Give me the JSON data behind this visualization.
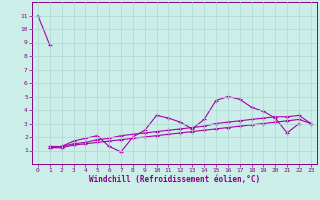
{
  "xlabel": "Windchill (Refroidissement éolien,°C)",
  "background_color": "#cceee8",
  "grid_color": "#b0d8d8",
  "line_color": "#aa00aa",
  "x": [
    0,
    1,
    2,
    3,
    4,
    5,
    6,
    7,
    8,
    9,
    10,
    11,
    12,
    13,
    14,
    15,
    16,
    17,
    18,
    19,
    20,
    21,
    22,
    23
  ],
  "series1": [
    11.0,
    8.8,
    null,
    null,
    null,
    null,
    null,
    null,
    null,
    null,
    null,
    null,
    null,
    null,
    null,
    null,
    null,
    null,
    null,
    null,
    null,
    null,
    null,
    null
  ],
  "series2": [
    null,
    1.3,
    1.3,
    1.7,
    1.9,
    2.1,
    1.3,
    0.9,
    2.0,
    2.5,
    3.6,
    3.4,
    3.1,
    2.6,
    3.3,
    4.7,
    5.0,
    4.8,
    4.2,
    3.9,
    3.4,
    2.3,
    3.0,
    null
  ],
  "series3": [
    null,
    1.2,
    1.3,
    1.5,
    1.6,
    1.8,
    1.9,
    2.1,
    2.2,
    2.3,
    2.4,
    2.5,
    2.6,
    2.7,
    2.8,
    3.0,
    3.1,
    3.2,
    3.3,
    3.4,
    3.5,
    3.5,
    3.6,
    3.0
  ],
  "series4": [
    null,
    1.2,
    1.2,
    1.4,
    1.5,
    1.6,
    1.7,
    1.8,
    1.9,
    2.0,
    2.1,
    2.2,
    2.3,
    2.4,
    2.5,
    2.6,
    2.7,
    2.8,
    2.9,
    3.0,
    3.1,
    3.2,
    3.3,
    3.0
  ],
  "xlim": [
    -0.5,
    23.5
  ],
  "ylim": [
    0,
    12
  ],
  "yticks": [
    1,
    2,
    3,
    4,
    5,
    6,
    7,
    8,
    9,
    10,
    11
  ],
  "xticks": [
    0,
    1,
    2,
    3,
    4,
    5,
    6,
    7,
    8,
    9,
    10,
    11,
    12,
    13,
    14,
    15,
    16,
    17,
    18,
    19,
    20,
    21,
    22,
    23
  ],
  "marker": "+",
  "tick_color": "#880088",
  "label_fontsize": 4.5,
  "xlabel_fontsize": 5.5,
  "marker_size": 3,
  "linewidth": 0.8
}
